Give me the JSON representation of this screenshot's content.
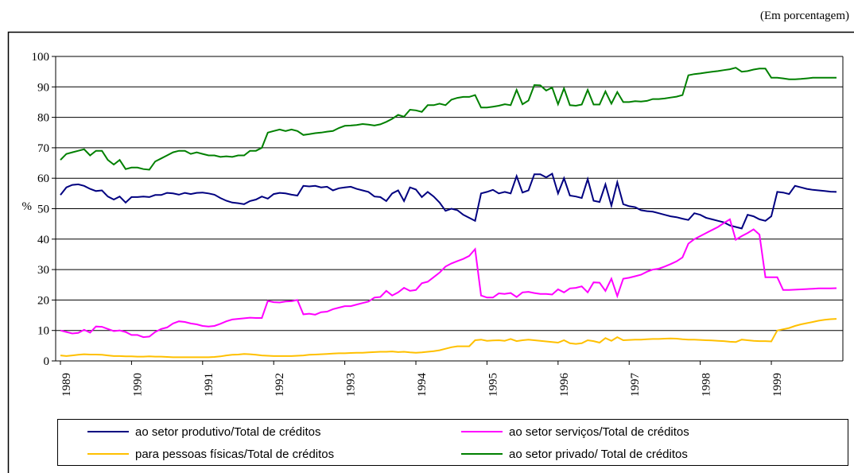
{
  "chart_data": {
    "type": "line",
    "subtitle": "(Em porcentagem)",
    "y_label": "%",
    "ylim": [
      0,
      100
    ],
    "yticks": [
      0,
      10,
      20,
      30,
      40,
      50,
      60,
      70,
      80,
      90,
      100
    ],
    "grid": true,
    "legend": "bottom",
    "categories": [
      "1989",
      null,
      null,
      null,
      null,
      null,
      null,
      null,
      null,
      null,
      null,
      null,
      "1990",
      null,
      null,
      null,
      null,
      null,
      null,
      null,
      null,
      null,
      null,
      null,
      "1991",
      null,
      null,
      null,
      null,
      null,
      null,
      null,
      null,
      null,
      null,
      null,
      "1992",
      null,
      null,
      null,
      null,
      null,
      null,
      null,
      null,
      null,
      null,
      null,
      "1993",
      null,
      null,
      null,
      null,
      null,
      null,
      null,
      null,
      null,
      null,
      null,
      "1994",
      null,
      null,
      null,
      null,
      null,
      null,
      null,
      null,
      null,
      null,
      null,
      "1995",
      null,
      null,
      null,
      null,
      null,
      null,
      null,
      null,
      null,
      null,
      null,
      "1996",
      null,
      null,
      null,
      null,
      null,
      null,
      null,
      null,
      null,
      null,
      null,
      "1997",
      null,
      null,
      null,
      null,
      null,
      null,
      null,
      null,
      null,
      null,
      null,
      "1998",
      null,
      null,
      null,
      null,
      null,
      null,
      null,
      null,
      null,
      null,
      null,
      "1999",
      null,
      null,
      null,
      null,
      null,
      null,
      null,
      null,
      null,
      null,
      null
    ],
    "series": [
      {
        "name": "ao setor produtivo/Total de créditos",
        "color": "#000080",
        "values": [
          54.5,
          57,
          57.8,
          58,
          57.5,
          56.5,
          55.8,
          56,
          54,
          53,
          54,
          52,
          53.8,
          53.8,
          54,
          53.8,
          54.5,
          54.5,
          55.2,
          55,
          54.6,
          55.2,
          54.8,
          55.2,
          55.3,
          55,
          54.6,
          53.5,
          52.6,
          52,
          51.8,
          51.5,
          52.5,
          53,
          54,
          53.3,
          54.8,
          55.2,
          55,
          54.6,
          54.3,
          57.5,
          57.3,
          57.5,
          57,
          57.2,
          56,
          56.7,
          57,
          57.2,
          56.5,
          56,
          55.5,
          54,
          53.8,
          52.5,
          55,
          56,
          52.5,
          57,
          56.3,
          53.8,
          55.5,
          54,
          52,
          49.3,
          50,
          49.5,
          48,
          47,
          46,
          55,
          55.5,
          56.2,
          55,
          55.5,
          55,
          60.7,
          55.3,
          56,
          61.3,
          61.3,
          60.3,
          61.5,
          55,
          60,
          54.3,
          54,
          53.5,
          59.7,
          52.6,
          52.2,
          58,
          51,
          58.7,
          51.5,
          50.8,
          50.5,
          49.5,
          49.2,
          49,
          48.5,
          48,
          47.5,
          47.2,
          46.7,
          46.3,
          48.5,
          48,
          47,
          46.5,
          46,
          45.5,
          44.5,
          44,
          43.5,
          48,
          47.5,
          46.5,
          46,
          47.5,
          55.5,
          55.3,
          54.8,
          57.5,
          57,
          56.5,
          56.2,
          56,
          55.8,
          55.6,
          55.5
        ]
      },
      {
        "name": "ao setor serviços/Total de créditos",
        "color": "#ff00ff",
        "values": [
          10,
          9.5,
          9,
          9.2,
          10.2,
          9.3,
          11.3,
          11.2,
          10.5,
          9.8,
          10,
          9.5,
          8.5,
          8.5,
          7.8,
          8,
          9.5,
          10.5,
          11,
          12.3,
          13,
          12.8,
          12.3,
          12,
          11.5,
          11.3,
          11.5,
          12.2,
          13,
          13.6,
          13.8,
          14,
          14.2,
          14.1,
          14.1,
          19.7,
          19.3,
          19.2,
          19.5,
          19.6,
          20,
          15.3,
          15.5,
          15.2,
          16,
          16.2,
          17,
          17.5,
          18,
          18,
          18.5,
          19,
          19.5,
          20.8,
          21,
          23,
          21.5,
          22.5,
          24,
          23,
          23.3,
          25.5,
          26,
          27.5,
          29,
          31,
          32,
          32.8,
          33.5,
          34.5,
          36.7,
          21.5,
          20.8,
          20.8,
          22.2,
          22,
          22.3,
          21,
          22.5,
          22.7,
          22.3,
          22,
          22,
          21.8,
          23.5,
          22.5,
          23.8,
          24,
          24.5,
          22.5,
          25.8,
          25.7,
          23,
          27,
          21.3,
          27,
          27.3,
          27.8,
          28.3,
          29.3,
          30,
          30.3,
          31,
          31.8,
          32.7,
          34,
          38.5,
          40,
          41,
          42,
          43,
          44,
          45.3,
          46.5,
          39.8,
          41,
          42,
          43.2,
          41.5,
          27.5,
          27.5,
          27.5,
          23.3,
          23.3,
          23.4,
          23.5,
          23.6,
          23.7,
          23.8,
          23.8,
          23.8,
          23.9
        ]
      },
      {
        "name": "para pessoas físicas/Total de créditos",
        "color": "#ffc000",
        "values": [
          1.8,
          1.6,
          1.8,
          2,
          2.2,
          2.1,
          2.1,
          2,
          1.8,
          1.6,
          1.6,
          1.5,
          1.5,
          1.4,
          1.4,
          1.5,
          1.4,
          1.4,
          1.3,
          1.2,
          1.2,
          1.2,
          1.2,
          1.2,
          1.2,
          1.2,
          1.3,
          1.5,
          1.8,
          2,
          2.1,
          2.3,
          2.2,
          2,
          1.8,
          1.7,
          1.6,
          1.6,
          1.6,
          1.6,
          1.7,
          1.8,
          2,
          2.1,
          2.2,
          2.3,
          2.4,
          2.5,
          2.5,
          2.6,
          2.7,
          2.7,
          2.8,
          2.9,
          3,
          3,
          3.1,
          2.9,
          3,
          2.8,
          2.7,
          2.8,
          3,
          3.2,
          3.5,
          4,
          4.5,
          4.8,
          4.8,
          4.8,
          6.8,
          7,
          6.6,
          6.7,
          6.8,
          6.6,
          7.2,
          6.5,
          6.8,
          7,
          6.8,
          6.6,
          6.4,
          6.2,
          6,
          6.8,
          5.8,
          5.6,
          5.8,
          6.8,
          6.5,
          6,
          7.5,
          6.6,
          7.8,
          6.8,
          6.9,
          7,
          7,
          7.1,
          7.2,
          7.2,
          7.3,
          7.4,
          7.3,
          7.1,
          7,
          7,
          6.9,
          6.8,
          6.7,
          6.6,
          6.5,
          6.3,
          6.2,
          7,
          6.8,
          6.6,
          6.5,
          6.5,
          6.4,
          10,
          10.4,
          10.8,
          11.5,
          12,
          12.4,
          12.8,
          13.2,
          13.5,
          13.7,
          13.8
        ]
      },
      {
        "name": "ao setor privado/ Total de créditos",
        "color": "#008000",
        "values": [
          66,
          68,
          68.5,
          69,
          69.5,
          67.5,
          69,
          69,
          66,
          64.5,
          66,
          63,
          63.5,
          63.5,
          63,
          62.8,
          65.5,
          66.5,
          67.5,
          68.5,
          69,
          69,
          68,
          68.5,
          68,
          67.5,
          67.5,
          67,
          67.2,
          67,
          67.5,
          67.5,
          69,
          69,
          70,
          75,
          75.5,
          76,
          75.5,
          76,
          75.5,
          74.2,
          74.5,
          74.8,
          75,
          75.3,
          75.5,
          76.5,
          77.2,
          77.3,
          77.5,
          77.8,
          77.6,
          77.3,
          77.7,
          78.5,
          79.5,
          80.8,
          80.2,
          82.5,
          82.3,
          81.8,
          84,
          84,
          84.5,
          84,
          85.8,
          86.4,
          86.7,
          86.7,
          87.3,
          83.2,
          83.2,
          83.5,
          83.8,
          84.3,
          84,
          89,
          84.3,
          85.5,
          90.6,
          90.5,
          88.8,
          89.8,
          84.3,
          89.5,
          84,
          83.8,
          84.2,
          89,
          84.2,
          84.2,
          88.5,
          84.5,
          88.3,
          85,
          85,
          85.3,
          85.2,
          85.4,
          86,
          86,
          86.2,
          86.5,
          86.8,
          87.3,
          93.8,
          94.2,
          94.4,
          94.7,
          95,
          95.2,
          95.5,
          95.8,
          96.3,
          95,
          95.2,
          95.7,
          96,
          96,
          93,
          93,
          92.8,
          92.5,
          92.5,
          92.6,
          92.8,
          93,
          93,
          93,
          93,
          93
        ]
      }
    ]
  }
}
